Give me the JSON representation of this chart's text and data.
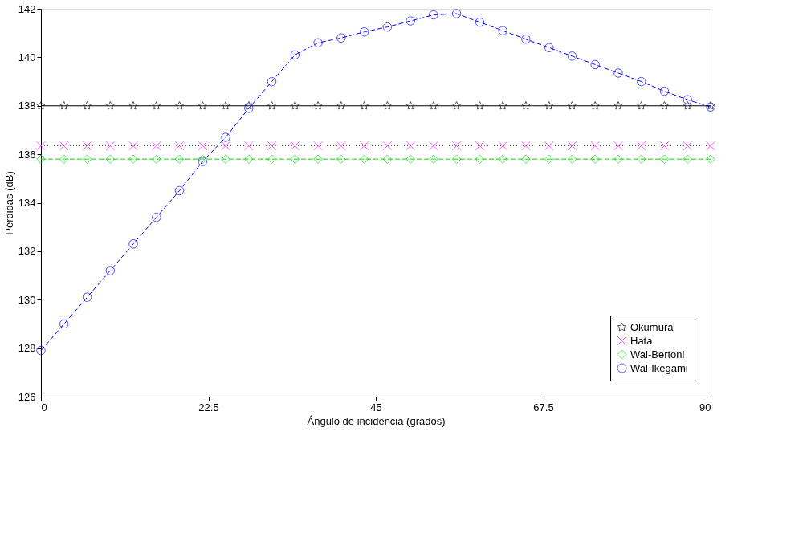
{
  "chart_data": {
    "type": "line",
    "xlabel": "Ángulo de incidencia (grados)",
    "ylabel": "Pérdidas (dB)",
    "x": [
      0,
      3.1,
      6.21,
      9.31,
      12.41,
      15.52,
      18.62,
      21.72,
      24.83,
      27.93,
      31.03,
      34.14,
      37.24,
      40.34,
      43.45,
      46.55,
      49.66,
      52.76,
      55.86,
      58.97,
      62.07,
      65.17,
      68.28,
      71.38,
      74.48,
      77.59,
      80.69,
      83.79,
      86.9,
      90
    ],
    "series": [
      {
        "name": "Okumura",
        "color": "#000000",
        "marker": "star",
        "line_style": "solid",
        "values": [
          138.0,
          138.0,
          138.0,
          138.0,
          138.0,
          138.0,
          138.0,
          138.0,
          138.0,
          138.0,
          138.0,
          138.0,
          138.0,
          138.0,
          138.0,
          138.0,
          138.0,
          138.0,
          138.0,
          138.0,
          138.0,
          138.0,
          138.0,
          138.0,
          138.0,
          138.0,
          138.0,
          138.0,
          138.0,
          138.0
        ]
      },
      {
        "name": "Hata",
        "color": "#ff00ff",
        "marker": "cross",
        "line_style": "dotted",
        "values": [
          136.35,
          136.35,
          136.35,
          136.35,
          136.35,
          136.35,
          136.35,
          136.35,
          136.35,
          136.35,
          136.35,
          136.35,
          136.35,
          136.35,
          136.35,
          136.35,
          136.35,
          136.35,
          136.35,
          136.35,
          136.35,
          136.35,
          136.35,
          136.35,
          136.35,
          136.35,
          136.35,
          136.35,
          136.35,
          136.35
        ]
      },
      {
        "name": "Wal-Bertoni",
        "color": "#00dd00",
        "marker": "diamond",
        "line_style": "dashed",
        "values": [
          135.8,
          135.8,
          135.8,
          135.8,
          135.8,
          135.8,
          135.8,
          135.8,
          135.8,
          135.8,
          135.8,
          135.8,
          135.8,
          135.8,
          135.8,
          135.8,
          135.8,
          135.8,
          135.8,
          135.8,
          135.8,
          135.8,
          135.8,
          135.8,
          135.8,
          135.8,
          135.8,
          135.8,
          135.8,
          135.8
        ]
      },
      {
        "name": "Wal-Ikegami",
        "color": "#0000ff",
        "marker": "circle",
        "line_style": "dashed",
        "values": [
          127.9,
          129.0,
          130.1,
          131.2,
          132.3,
          133.4,
          134.5,
          135.7,
          136.7,
          137.9,
          139.0,
          140.1,
          140.6,
          140.8,
          141.05,
          141.25,
          141.5,
          141.75,
          141.8,
          141.45,
          141.1,
          140.75,
          140.4,
          140.05,
          139.7,
          139.35,
          139.0,
          138.6,
          138.25,
          137.95
        ]
      }
    ],
    "xlim": [
      0,
      90
    ],
    "xticks": [
      0,
      22.5,
      45,
      67.5,
      90
    ],
    "ylim": [
      126,
      142
    ],
    "yticks": [
      126,
      128,
      130,
      132,
      134,
      136,
      138,
      140,
      142
    ],
    "legend": "bottom right",
    "grid": false
  }
}
